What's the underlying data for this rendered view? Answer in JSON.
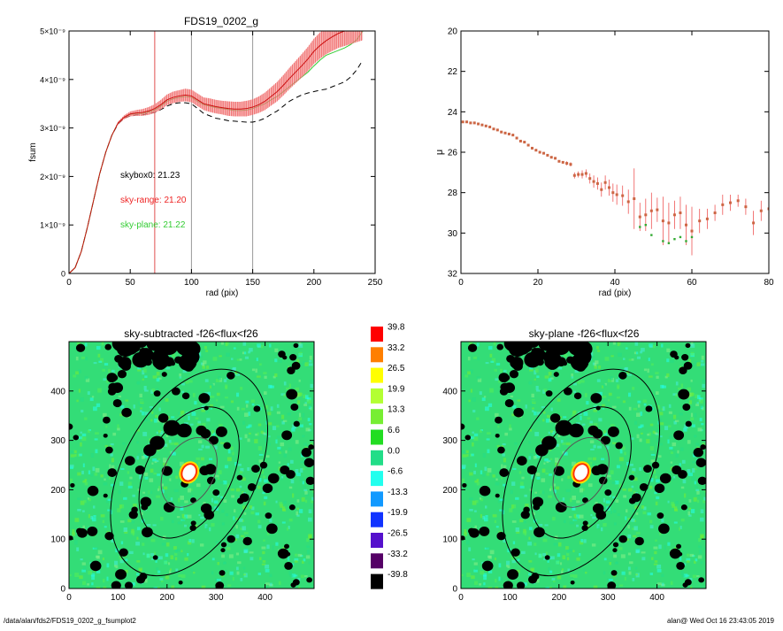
{
  "chart_data": [
    {
      "type": "line",
      "title": "FDS19_0202_g",
      "xlabel": "rad (pix)",
      "ylabel": "fsum",
      "xlim": [
        0,
        250
      ],
      "ylim": [
        0,
        5e-09
      ],
      "x_ticks": [
        "0",
        "50",
        "100",
        "150",
        "200",
        "250"
      ],
      "y_ticks": [
        "0",
        "1×10⁻⁹",
        "2×10⁻⁹",
        "3×10⁻⁹",
        "4×10⁻⁹",
        "5×10⁻⁹"
      ],
      "vlines": [
        {
          "x": 70,
          "color": "#e05050"
        },
        {
          "x": 100,
          "color": "#999999"
        },
        {
          "x": 150,
          "color": "#999999"
        }
      ],
      "annotations": [
        {
          "text": "skybox0: 21.23",
          "color": "#000000"
        },
        {
          "text": "sky-range: 21.20",
          "color": "#ee2222"
        },
        {
          "text": "sky-plane: 21.22",
          "color": "#33cc33"
        }
      ],
      "series": [
        {
          "color": "#000000",
          "style": "dashed",
          "x": [
            0,
            5,
            10,
            15,
            20,
            25,
            30,
            35,
            40,
            45,
            50,
            55,
            60,
            65,
            70,
            75,
            80,
            85,
            90,
            95,
            100,
            105,
            110,
            115,
            120,
            125,
            130,
            135,
            140,
            145,
            150,
            155,
            160,
            165,
            170,
            175,
            180,
            185,
            190,
            195,
            200,
            205,
            210,
            215,
            220,
            225,
            230,
            235,
            240
          ],
          "y": [
            0,
            0.12,
            0.45,
            0.95,
            1.5,
            2.05,
            2.5,
            2.85,
            3.08,
            3.2,
            3.25,
            3.27,
            3.27,
            3.3,
            3.32,
            3.38,
            3.45,
            3.5,
            3.52,
            3.52,
            3.5,
            3.4,
            3.3,
            3.25,
            3.2,
            3.18,
            3.15,
            3.14,
            3.13,
            3.12,
            3.12,
            3.15,
            3.2,
            3.28,
            3.35,
            3.45,
            3.55,
            3.62,
            3.68,
            3.72,
            3.75,
            3.78,
            3.8,
            3.85,
            3.9,
            3.95,
            4.05,
            4.2,
            4.4
          ]
        },
        {
          "color": "#33cc33",
          "style": "solid",
          "x": [
            0,
            5,
            10,
            15,
            20,
            25,
            30,
            35,
            40,
            45,
            50,
            55,
            60,
            65,
            70,
            75,
            80,
            85,
            90,
            95,
            100,
            105,
            110,
            115,
            120,
            125,
            130,
            135,
            140,
            145,
            150,
            155,
            160,
            165,
            170,
            175,
            180,
            185,
            190,
            195,
            200,
            205,
            210,
            215,
            220,
            225,
            230,
            235,
            240
          ],
          "y": [
            0,
            0.12,
            0.45,
            0.95,
            1.5,
            2.05,
            2.5,
            2.85,
            3.1,
            3.22,
            3.28,
            3.3,
            3.3,
            3.33,
            3.37,
            3.45,
            3.55,
            3.6,
            3.63,
            3.65,
            3.63,
            3.55,
            3.48,
            3.45,
            3.42,
            3.4,
            3.38,
            3.36,
            3.36,
            3.37,
            3.4,
            3.45,
            3.5,
            3.58,
            3.65,
            3.75,
            3.85,
            3.95,
            4.05,
            4.15,
            4.28,
            4.4,
            4.5,
            4.55,
            4.6,
            4.65,
            4.72,
            4.82,
            5.0
          ]
        },
        {
          "color": "#cc1111",
          "style": "solid",
          "errorbars": true,
          "x": [
            0,
            5,
            10,
            15,
            20,
            25,
            30,
            35,
            40,
            45,
            50,
            55,
            60,
            65,
            70,
            75,
            80,
            85,
            90,
            95,
            100,
            105,
            110,
            115,
            120,
            125,
            130,
            135,
            140,
            145,
            150,
            155,
            160,
            165,
            170,
            175,
            180,
            185,
            190,
            195,
            200,
            205,
            210,
            215,
            220,
            225,
            230,
            235,
            240
          ],
          "y": [
            0,
            0.12,
            0.45,
            0.95,
            1.5,
            2.05,
            2.5,
            2.85,
            3.1,
            3.22,
            3.29,
            3.31,
            3.32,
            3.35,
            3.4,
            3.48,
            3.58,
            3.63,
            3.66,
            3.68,
            3.66,
            3.58,
            3.5,
            3.47,
            3.44,
            3.42,
            3.4,
            3.39,
            3.39,
            3.4,
            3.43,
            3.48,
            3.55,
            3.65,
            3.75,
            3.88,
            4.02,
            4.15,
            4.28,
            4.42,
            4.58,
            4.7,
            4.8,
            4.88,
            4.95,
            5.0,
            5.05,
            5.1,
            5.15
          ],
          "err": [
            0,
            0,
            0,
            0,
            0,
            0,
            0,
            0,
            0.03,
            0.04,
            0.05,
            0.06,
            0.07,
            0.08,
            0.09,
            0.1,
            0.11,
            0.12,
            0.12,
            0.13,
            0.13,
            0.13,
            0.13,
            0.14,
            0.14,
            0.14,
            0.15,
            0.15,
            0.15,
            0.16,
            0.16,
            0.17,
            0.18,
            0.19,
            0.2,
            0.21,
            0.22,
            0.23,
            0.24,
            0.25,
            0.26,
            0.27,
            0.28,
            0.29,
            0.3,
            0.31,
            0.32,
            0.33,
            0.34
          ]
        }
      ]
    },
    {
      "type": "scatter",
      "xlabel": "rad (pix)",
      "ylabel": "μ",
      "xlim": [
        0,
        80
      ],
      "ylim": [
        32,
        20
      ],
      "x_ticks": [
        "0",
        "20",
        "40",
        "60",
        "80"
      ],
      "y_ticks": [
        "20",
        "22",
        "24",
        "26",
        "28",
        "30",
        "32"
      ],
      "series": [
        {
          "color": "#cc6644",
          "errorbars": true,
          "x": [
            0.5,
            1.5,
            2.5,
            3.5,
            4.5,
            5.5,
            6.5,
            7.5,
            8.5,
            9.5,
            10.5,
            11.5,
            12.5,
            13.5,
            14.5,
            15.5,
            16.5,
            17.5,
            18.5,
            19.5,
            20.5,
            21.5,
            22.5,
            23.5,
            24.5,
            25.5,
            26.5,
            27.5,
            28.5,
            29.5,
            30.5,
            31.5,
            32.5,
            33.5,
            34.5,
            35.5,
            36.5,
            37.5,
            38.5,
            39.5,
            40.5,
            42,
            43.5,
            45,
            46.5,
            48,
            49.5,
            51,
            52.5,
            54,
            55.5,
            57,
            58.5,
            60,
            62,
            64,
            66,
            68,
            70,
            72,
            74,
            76,
            78,
            80
          ],
          "y": [
            24.5,
            24.5,
            24.55,
            24.55,
            24.6,
            24.65,
            24.7,
            24.75,
            24.85,
            24.9,
            25.0,
            25.05,
            25.1,
            25.15,
            25.3,
            25.45,
            25.5,
            25.65,
            25.8,
            25.9,
            26.0,
            26.05,
            26.15,
            26.25,
            26.3,
            26.45,
            26.5,
            26.55,
            26.6,
            27.15,
            27.1,
            27.1,
            27.05,
            27.3,
            27.45,
            27.55,
            27.85,
            27.5,
            27.75,
            28.0,
            28.1,
            28.15,
            28.45,
            28.3,
            29.2,
            29.1,
            28.9,
            28.85,
            29.4,
            29.5,
            29.1,
            29.0,
            29.6,
            29.9,
            29.4,
            29.3,
            29.0,
            28.6,
            28.5,
            28.4,
            28.7,
            29.5,
            28.9,
            28.8
          ],
          "err": [
            0.05,
            0.05,
            0.05,
            0.05,
            0.05,
            0.05,
            0.05,
            0.05,
            0.05,
            0.05,
            0.05,
            0.05,
            0.05,
            0.05,
            0.05,
            0.05,
            0.05,
            0.05,
            0.05,
            0.05,
            0.06,
            0.06,
            0.06,
            0.07,
            0.07,
            0.08,
            0.08,
            0.1,
            0.1,
            0.15,
            0.15,
            0.2,
            0.2,
            0.25,
            0.3,
            0.3,
            0.35,
            0.35,
            0.4,
            0.45,
            0.5,
            0.5,
            0.6,
            1.5,
            0.7,
            0.8,
            0.9,
            0.6,
            1.2,
            1.0,
            0.7,
            0.8,
            1.0,
            1.2,
            0.6,
            0.5,
            0.4,
            0.5,
            0.4,
            0.3,
            0.4,
            0.6,
            0.5,
            0.5
          ]
        },
        {
          "color": "#33aa33",
          "x": [
            46.5,
            48,
            49.5,
            52.5,
            54,
            55.5,
            57,
            58.5,
            60
          ],
          "y": [
            29.7,
            29.6,
            30.1,
            30.4,
            30.5,
            30.3,
            30.2,
            30.4,
            30.2
          ]
        }
      ]
    },
    {
      "type": "heatmap",
      "title": "sky-subtracted -f26<flux<f26",
      "xlim": [
        0,
        500
      ],
      "ylim": [
        0,
        500
      ],
      "x_ticks": [
        "0",
        "100",
        "200",
        "300",
        "400"
      ],
      "y_ticks": [
        "0",
        "100",
        "200",
        "300",
        "400"
      ],
      "background_color": "#33dd77",
      "mask_color": "#000000",
      "center": [
        245,
        235
      ]
    },
    {
      "type": "heatmap",
      "title": "sky-plane -f26<flux<f26",
      "xlim": [
        0,
        500
      ],
      "ylim": [
        0,
        500
      ],
      "x_ticks": [
        "0",
        "100",
        "200",
        "300",
        "400"
      ],
      "y_ticks": [
        "0",
        "100",
        "200",
        "300",
        "400"
      ],
      "background_color": "#33dd77",
      "mask_color": "#000000",
      "center": [
        245,
        235
      ]
    }
  ],
  "colorbar": {
    "levels": [
      {
        "label": "39.8",
        "color": "#ff0000"
      },
      {
        "label": "33.2",
        "color": "#ff7f00"
      },
      {
        "label": "26.5",
        "color": "#ffff00"
      },
      {
        "label": "19.9",
        "color": "#b3ff33"
      },
      {
        "label": "13.3",
        "color": "#77ee33"
      },
      {
        "label": "6.6",
        "color": "#22dd22"
      },
      {
        "label": "0.0",
        "color": "#22dd88"
      },
      {
        "label": "-6.6",
        "color": "#22ffee"
      },
      {
        "label": "-13.3",
        "color": "#1199ff"
      },
      {
        "label": "-19.9",
        "color": "#1133ff"
      },
      {
        "label": "-26.5",
        "color": "#5511cc"
      },
      {
        "label": "-33.2",
        "color": "#550066"
      },
      {
        "label": "-39.8",
        "color": "#000000"
      }
    ]
  },
  "footer": {
    "left": "/data/alan/fds2/FDS19_0202_g_fsumplot2",
    "right": "alan@  Wed Oct 16 23:43:05 2019"
  }
}
